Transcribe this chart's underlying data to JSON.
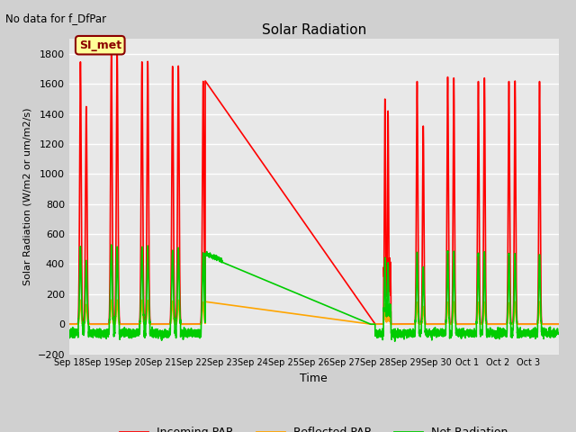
{
  "title": "Solar Radiation",
  "subtitle": "No data for f_DfPar",
  "ylabel": "Solar Radiation (W/m2 or um/m2/s)",
  "xlabel": "Time",
  "ylim": [
    -200,
    1900
  ],
  "yticks": [
    -200,
    0,
    200,
    400,
    600,
    800,
    1000,
    1200,
    1400,
    1600,
    1800
  ],
  "bg_color": "#e0e0e0",
  "plot_bg_color": "#e8e8e8",
  "legend_label": "SI_met",
  "legend_box_color": "#ffff99",
  "legend_box_edge": "#8b0000",
  "incoming_color": "#ff0000",
  "reflected_color": "#ffa500",
  "net_color": "#00cc00",
  "line_width": 1.2,
  "xtick_labels": [
    "Sep 18",
    "Sep 19",
    "Sep 20",
    "Sep 21",
    "Sep 22",
    "Sep 23",
    "Sep 24",
    "Sep 25",
    "Sep 26",
    "Sep 27",
    "Sep 28",
    "Sep 29",
    "Sep 30",
    "Oct 1",
    "Oct 2",
    "Oct 3"
  ]
}
